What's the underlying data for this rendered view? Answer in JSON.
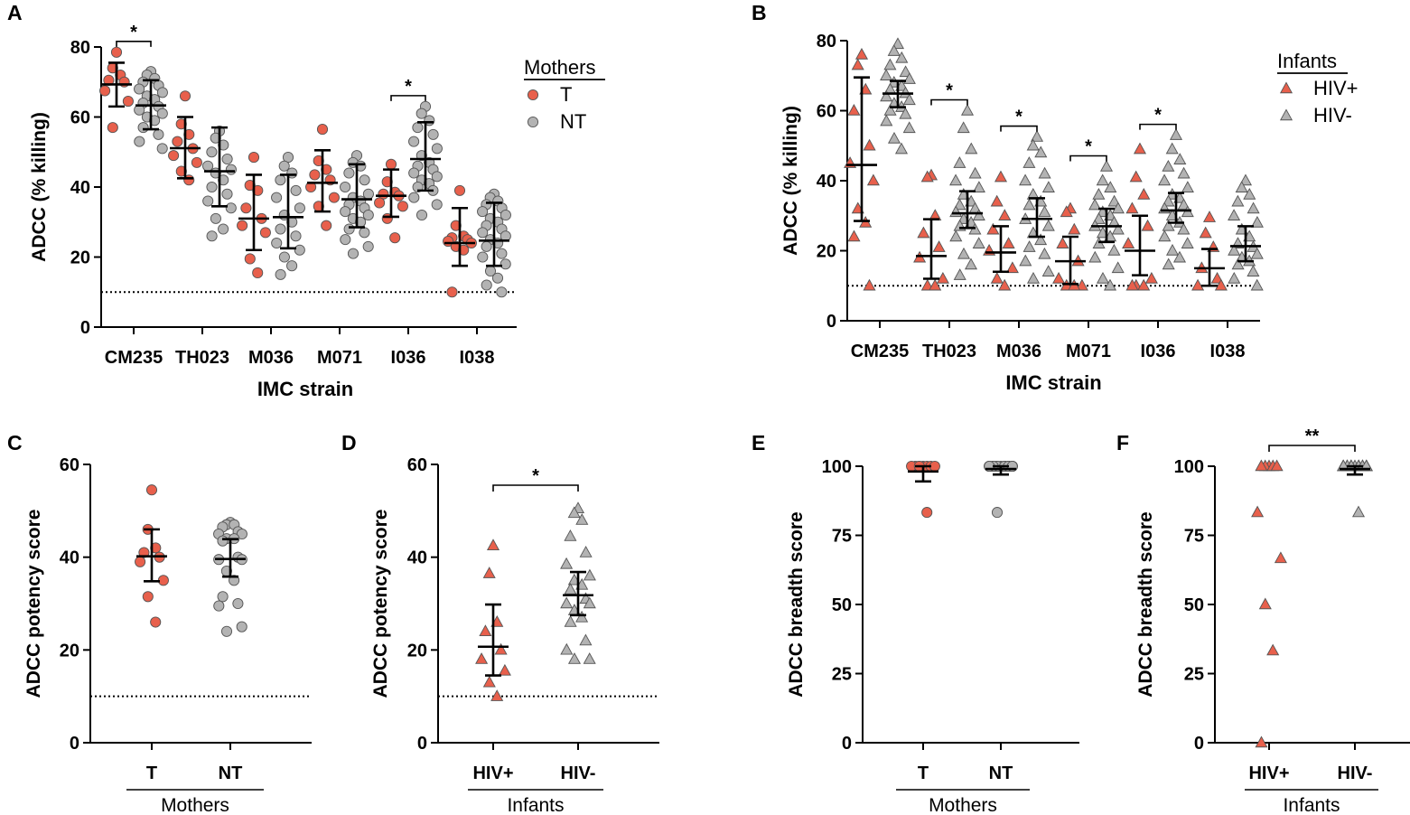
{
  "colors": {
    "T": "#e8604c",
    "NT": "#b3b3b3",
    "HIVpos": "#e8604c",
    "HIVneg": "#b3b3b3",
    "stroke": "#555555"
  },
  "chart_data": [
    {
      "panel": "A",
      "type": "scatter",
      "subtype": "dot_mean_sd",
      "ylabel": "ADCC (% killing)",
      "xlabel": "IMC strain",
      "ylim": [
        0,
        80
      ],
      "yticks": [
        0,
        20,
        40,
        60,
        80
      ],
      "cutoff": 10,
      "categories": [
        "CM235",
        "TH023",
        "M036",
        "M071",
        "I036",
        "I038"
      ],
      "legend": {
        "title": "Mothers",
        "position": "top-right"
      },
      "series": [
        {
          "name": "T",
          "marker": "circle",
          "color": "T",
          "center": [
            69.3,
            51.1,
            31.0,
            41.2,
            37.5,
            24.0
          ],
          "lower": [
            63.0,
            42.5,
            22.0,
            33.0,
            31.5,
            17.5
          ],
          "upper": [
            75.5,
            60.0,
            43.5,
            50.5,
            45.0,
            34.0
          ],
          "points": [
            [
              78.5,
              74,
              72,
              70.5,
              70,
              67.5,
              64.5,
              57
            ],
            [
              66,
              58,
              55,
              53,
              51,
              49,
              47,
              44.5,
              42
            ],
            [
              48.5,
              40.5,
              39,
              34,
              31,
              29,
              27,
              19.5,
              15.5
            ],
            [
              56.5,
              47.5,
              45,
              43.5,
              42,
              40,
              37,
              34.5,
              29
            ],
            [
              46.5,
              41.5,
              38.5,
              38,
              37.5,
              35.5,
              34.5,
              31,
              25.5
            ],
            [
              39,
              29,
              26,
              25.5,
              25,
              24.5,
              24,
              23,
              22,
              10
            ]
          ]
        },
        {
          "name": "NT",
          "marker": "circle",
          "color": "NT",
          "center": [
            63.3,
            44.5,
            31.4,
            36.5,
            48.0,
            24.7
          ],
          "lower": [
            56.5,
            34.5,
            22.5,
            28.5,
            39.0,
            17.5
          ],
          "upper": [
            70.5,
            57.0,
            43.5,
            46.5,
            58.5,
            35.5
          ],
          "points": [
            [
              73,
              72,
              71,
              70,
              69,
              68,
              67,
              66,
              65,
              64,
              63,
              62,
              61,
              60,
              59,
              57,
              55,
              53,
              51
            ],
            [
              56,
              54,
              52,
              50,
              48,
              46,
              45,
              44,
              42,
              40,
              38,
              36,
              34,
              31,
              28,
              26
            ],
            [
              48.5,
              46,
              44,
              42,
              39,
              37,
              34,
              32,
              30,
              28,
              26,
              24,
              22,
              20,
              17.5,
              15
            ],
            [
              49,
              47,
              46,
              44,
              42,
              40,
              38,
              37,
              36,
              35,
              34,
              33,
              32,
              31,
              30,
              28,
              27,
              25,
              23,
              21
            ],
            [
              63,
              61,
              59,
              57,
              55,
              53,
              51,
              49,
              47,
              46,
              45,
              44,
              43,
              42,
              41,
              40,
              39,
              37,
              35,
              32
            ],
            [
              38,
              37,
              36,
              35,
              34,
              33,
              32,
              31,
              30,
              29,
              28,
              27,
              26,
              25,
              24,
              23,
              21,
              20,
              18,
              16,
              14,
              12,
              10
            ]
          ]
        }
      ],
      "significance": [
        {
          "category": "CM235",
          "label": "*"
        },
        {
          "category": "I036",
          "label": "*"
        }
      ]
    },
    {
      "panel": "B",
      "type": "scatter",
      "subtype": "dot_mean_sd",
      "ylabel": "ADCC (% killing)",
      "xlabel": "IMC strain",
      "ylim": [
        0,
        80
      ],
      "yticks": [
        0,
        20,
        40,
        60,
        80
      ],
      "cutoff": 10,
      "categories": [
        "CM235",
        "TH023",
        "M036",
        "M071",
        "I036",
        "I038"
      ],
      "legend": {
        "title": "Infants",
        "position": "top-right"
      },
      "series": [
        {
          "name": "HIV+",
          "marker": "triangle",
          "color": "HIVpos",
          "center": [
            44.5,
            18.5,
            19.5,
            17.0,
            20.0,
            15.0
          ],
          "lower": [
            28.5,
            12.0,
            14.0,
            10.5,
            13.0,
            10.0
          ],
          "upper": [
            69.5,
            29.0,
            27.0,
            24.0,
            30.0,
            20.5
          ],
          "points": [
            [
              76,
              73,
              66,
              60,
              50,
              45,
              40,
              32,
              28,
              24,
              10
            ],
            [
              41.5,
              41,
              30,
              25,
              21,
              18,
              12,
              10,
              10
            ],
            [
              41,
              34,
              30,
              26,
              22,
              20,
              15,
              12,
              10
            ],
            [
              32,
              31,
              26,
              22,
              17,
              12,
              10,
              10,
              10
            ],
            [
              49,
              41,
              36,
              32,
              27,
              22,
              12,
              10,
              10,
              10
            ],
            [
              29.5,
              25,
              21,
              15,
              12,
              10,
              10
            ]
          ]
        },
        {
          "name": "HIV-",
          "marker": "triangle",
          "color": "HIVneg",
          "center": [
            64.9,
            30.7,
            29.1,
            27.0,
            31.5,
            21.3
          ],
          "lower": [
            61.0,
            26.5,
            24.0,
            22.5,
            28.0,
            17.0
          ],
          "upper": [
            68.5,
            37.0,
            35.0,
            32.0,
            36.5,
            27.0
          ],
          "points": [
            [
              79,
              77,
              75,
              73,
              71,
              70,
              69,
              68,
              67,
              66,
              65,
              64,
              63,
              62,
              61,
              60,
              59,
              57,
              55,
              52,
              49
            ],
            [
              60,
              55,
              49,
              45,
              42,
              40,
              38,
              36,
              34,
              33,
              32,
              31,
              30,
              29,
              28,
              27,
              26,
              24,
              22,
              19,
              16,
              13
            ],
            [
              52.5,
              50,
              48,
              45,
              42,
              40,
              38,
              36,
              34,
              33,
              31,
              29,
              27,
              25,
              23,
              21,
              19,
              17,
              14,
              12
            ],
            [
              44,
              40,
              38,
              36,
              34,
              33,
              32,
              31,
              30,
              29,
              28,
              27,
              26,
              25,
              24,
              22,
              20,
              18,
              15,
              12,
              10
            ],
            [
              53,
              49,
              46,
              44,
              42,
              40,
              38,
              36,
              35,
              34,
              33,
              32,
              31,
              30,
              28,
              27,
              26,
              24,
              22,
              20,
              18,
              16
            ],
            [
              40,
              38,
              36,
              34,
              32,
              30,
              28,
              26,
              24,
              22,
              21,
              20,
              19,
              18,
              17,
              16,
              14,
              12,
              10
            ]
          ]
        }
      ],
      "significance": [
        {
          "category": "TH023",
          "label": "*"
        },
        {
          "category": "M036",
          "label": "*"
        },
        {
          "category": "M071",
          "label": "*"
        },
        {
          "category": "I036",
          "label": "*"
        }
      ]
    },
    {
      "panel": "C",
      "type": "scatter",
      "subtype": "dot_mean_sd",
      "ylabel": "ADCC potency score",
      "ylim": [
        0,
        60
      ],
      "yticks": [
        0,
        20,
        40,
        60
      ],
      "cutoff": 10,
      "group_label": "Mothers",
      "series": [
        {
          "name": "T",
          "marker": "circle",
          "color": "T",
          "center": 40.2,
          "lower": 34.8,
          "upper": 46.0,
          "points": [
            54.5,
            46,
            42,
            41,
            40,
            39,
            35,
            31.5,
            26
          ]
        },
        {
          "name": "NT",
          "marker": "circle",
          "color": "NT",
          "center": 39.6,
          "lower": 35.8,
          "upper": 43.9,
          "points": [
            47.5,
            47,
            47,
            46.5,
            45.5,
            45,
            45,
            44,
            44,
            43.5,
            40,
            39.5,
            39.5,
            37,
            35,
            31.5,
            30,
            29.5,
            25,
            24
          ]
        }
      ],
      "significance": []
    },
    {
      "panel": "D",
      "type": "scatter",
      "subtype": "dot_mean_sd",
      "ylabel": "ADCC potency score",
      "ylim": [
        0,
        60
      ],
      "yticks": [
        0,
        20,
        40,
        60
      ],
      "cutoff": 10,
      "group_label": "Infants",
      "series": [
        {
          "name": "HIV+",
          "marker": "triangle",
          "color": "HIVpos",
          "center": 20.7,
          "lower": 14.5,
          "upper": 29.8,
          "points": [
            42.5,
            36.5,
            26,
            24,
            20,
            18,
            15.5,
            13,
            10
          ]
        },
        {
          "name": "HIV-",
          "marker": "triangle",
          "color": "HIVneg",
          "center": 31.8,
          "lower": 27.5,
          "upper": 36.8,
          "points": [
            50.5,
            49.5,
            48,
            44.5,
            41,
            38.5,
            36,
            35,
            34,
            33,
            31,
            30,
            30,
            28.5,
            27,
            26,
            22,
            20,
            18,
            18
          ]
        }
      ],
      "significance": [
        {
          "between": [
            "HIV+",
            "HIV-"
          ],
          "label": "*"
        }
      ]
    },
    {
      "panel": "E",
      "type": "scatter",
      "subtype": "dot_mean_sd",
      "ylabel": "ADCC breadth score",
      "ylim": [
        0,
        100
      ],
      "yticks": [
        0,
        25,
        50,
        75,
        100
      ],
      "group_label": "Mothers",
      "series": [
        {
          "name": "T",
          "marker": "circle",
          "color": "T",
          "center": 98.1,
          "lower": 94.5,
          "upper": 100,
          "points": [
            100,
            100,
            100,
            100,
            100,
            100,
            100,
            100,
            83.3
          ]
        },
        {
          "name": "NT",
          "marker": "circle",
          "color": "NT",
          "center": 99.0,
          "lower": 97.0,
          "upper": 100,
          "points": [
            100,
            100,
            100,
            100,
            100,
            100,
            100,
            100,
            100,
            100,
            100,
            100,
            100,
            100,
            100,
            100,
            100,
            100,
            100,
            83.3
          ]
        }
      ],
      "significance": []
    },
    {
      "panel": "F",
      "type": "scatter",
      "subtype": "dot_mean_sd",
      "ylabel": "ADCC breadth score",
      "ylim": [
        0,
        100
      ],
      "yticks": [
        0,
        25,
        50,
        75,
        100
      ],
      "group_label": "Infants",
      "series": [
        {
          "name": "HIV+",
          "marker": "triangle",
          "color": "HIVpos",
          "center": null,
          "lower": null,
          "upper": null,
          "points": [
            100,
            100,
            100,
            100,
            100,
            83.3,
            66.7,
            50,
            33.3,
            0
          ]
        },
        {
          "name": "HIV-",
          "marker": "triangle",
          "color": "HIVneg",
          "center": 99.0,
          "lower": 97.0,
          "upper": 100,
          "points": [
            100,
            100,
            100,
            100,
            100,
            100,
            100,
            100,
            100,
            100,
            100,
            100,
            100,
            100,
            100,
            100,
            100,
            100,
            100,
            100,
            83.3
          ]
        }
      ],
      "significance": [
        {
          "between": [
            "HIV+",
            "HIV-"
          ],
          "label": "**"
        }
      ]
    }
  ]
}
